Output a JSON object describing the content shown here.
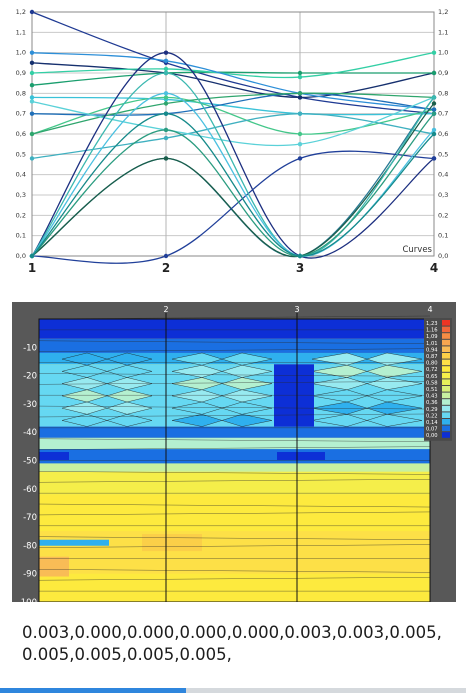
{
  "chart_data": [
    {
      "type": "line",
      "title": "",
      "x": [
        1,
        2,
        3,
        4
      ],
      "ylim": [
        0,
        1.2
      ],
      "y_ticks": [
        "0,0",
        "0,1",
        "0,2",
        "0,3",
        "0,4",
        "0,5",
        "0,6",
        "0,7",
        "0,8",
        "0,9",
        "1,0",
        "1,1",
        "1,2"
      ],
      "x_tick_labels": [
        "1",
        "2",
        "3",
        "4"
      ],
      "xlabel": "Curves",
      "grid": true,
      "series": [
        {
          "color": "#1f3a93",
          "values": [
            1.2,
            0.95,
            0.78,
            0.7
          ]
        },
        {
          "color": "#16306e",
          "values": [
            0.95,
            0.9,
            0.78,
            0.9
          ]
        },
        {
          "color": "#1a9e6e",
          "values": [
            0.84,
            0.9,
            0.9,
            0.9
          ]
        },
        {
          "color": "#33cfa5",
          "values": [
            0.9,
            0.92,
            0.88,
            1.0
          ]
        },
        {
          "color": "#2d8fd8",
          "values": [
            1.0,
            0.96,
            0.8,
            0.72
          ]
        },
        {
          "color": "#3ac2d8",
          "values": [
            0.78,
            0.77,
            0.7,
            0.7
          ]
        },
        {
          "color": "#44c78a",
          "values": [
            0.6,
            0.78,
            0.6,
            0.72
          ]
        },
        {
          "color": "#1f6fb8",
          "values": [
            0.7,
            0.7,
            0.8,
            0.72
          ]
        },
        {
          "color": "#3fb0c0",
          "values": [
            0.48,
            0.58,
            0.7,
            0.6
          ]
        },
        {
          "color": "#2fa56d",
          "values": [
            0.6,
            0.75,
            0.8,
            0.78
          ]
        },
        {
          "color": "#5ad1d8",
          "values": [
            0.76,
            0.62,
            0.55,
            0.78
          ]
        },
        {
          "color": "#1c2f80",
          "values": [
            0.0,
            1.0,
            0.0,
            0.48
          ]
        },
        {
          "color": "#2a7a95",
          "values": [
            0.0,
            0.48,
            0.0,
            0.78
          ]
        },
        {
          "color": "#1b5e4a",
          "values": [
            0.0,
            0.48,
            0.0,
            0.75
          ]
        },
        {
          "color": "#21409a",
          "values": [
            0.0,
            0.0,
            0.48,
            0.48
          ]
        },
        {
          "color": "#3bb8b0",
          "values": [
            0.0,
            0.9,
            0.0,
            0.78
          ]
        },
        {
          "color": "#2b9c80",
          "values": [
            0.0,
            0.62,
            0.0,
            0.7
          ]
        },
        {
          "color": "#4bc0e0",
          "values": [
            0.0,
            0.8,
            0.0,
            0.62
          ]
        },
        {
          "color": "#168a8a",
          "values": [
            0.0,
            0.7,
            0.0,
            0.6
          ]
        }
      ]
    },
    {
      "type": "heatmap",
      "title": "",
      "x_tick_labels": [
        "2",
        "3",
        "4"
      ],
      "y_tick_labels": [
        "-10",
        "-20",
        "-30",
        "-40",
        "-50",
        "-60",
        "-70",
        "-80",
        "-90",
        "-100"
      ],
      "ylim": [
        -100,
        0
      ],
      "legend_position": "top-right",
      "legend": [
        {
          "label": "1,23",
          "color": "#ee3524"
        },
        {
          "label": "1,16",
          "color": "#f2663a"
        },
        {
          "label": "1,09",
          "color": "#f58c44"
        },
        {
          "label": "1,01",
          "color": "#f7a650"
        },
        {
          "label": "0,94",
          "color": "#f9bc56"
        },
        {
          "label": "0,87",
          "color": "#fbcf48"
        },
        {
          "label": "0,80",
          "color": "#fde047"
        },
        {
          "label": "0,72",
          "color": "#fdea3e"
        },
        {
          "label": "0,65",
          "color": "#f5ee4a"
        },
        {
          "label": "0,58",
          "color": "#e6f05a"
        },
        {
          "label": "0,51",
          "color": "#d8f07a"
        },
        {
          "label": "0,43",
          "color": "#c7f0a0"
        },
        {
          "label": "0,36",
          "color": "#b4f0d0"
        },
        {
          "label": "0,29",
          "color": "#97eaf0"
        },
        {
          "label": "0,22",
          "color": "#66d8f2"
        },
        {
          "label": "0,14",
          "color": "#2fb0ee"
        },
        {
          "label": "0,07",
          "color": "#1a6fe2"
        },
        {
          "label": "0,00",
          "color": "#0d2fd6"
        }
      ],
      "bands": [
        {
          "depth": [
            0,
            -7
          ],
          "value": 0.03
        },
        {
          "depth": [
            -7,
            -12
          ],
          "value": 0.05
        },
        {
          "depth": [
            -12,
            -16
          ],
          "value": 0.13
        },
        {
          "depth": [
            -16,
            -32
          ],
          "value": 0.25
        },
        {
          "depth": [
            -32,
            -38
          ],
          "value": 0.2
        },
        {
          "depth": [
            -38,
            -42
          ],
          "value": 0.07
        },
        {
          "depth": [
            -42,
            -46
          ],
          "value": 0.35
        },
        {
          "depth": [
            -46,
            -51
          ],
          "value": 0.14
        },
        {
          "depth": [
            -51,
            -54
          ],
          "value": 0.45
        },
        {
          "depth": [
            -54,
            -62
          ],
          "value": 0.65
        },
        {
          "depth": [
            -62,
            -75
          ],
          "value": 0.72
        },
        {
          "depth": [
            -75,
            -82
          ],
          "value": 0.76
        },
        {
          "depth": [
            -82,
            -90
          ],
          "value": 0.8
        },
        {
          "depth": [
            -90,
            -100
          ],
          "value": 0.74
        }
      ]
    }
  ],
  "bottom_text": "0.003,0.000,0.000,0.000,0.000,0.003,0.003,0.005,0.005,0.005,0.005,0.005,",
  "progress": 0.4
}
